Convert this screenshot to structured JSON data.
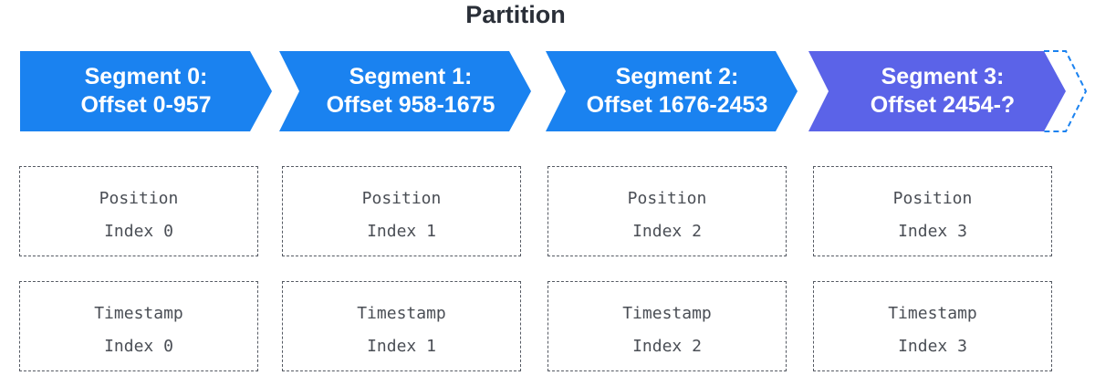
{
  "title": "Partition",
  "colors": {
    "segment_blue": "#1a82f0",
    "segment_active": "#5b63e8",
    "dashed_border": "#555a63",
    "text_dark": "#2a2f38",
    "mono_text": "#4a4e55"
  },
  "segments": [
    {
      "line1": "Segment 0:",
      "line2": "Offset 0-957",
      "active": false
    },
    {
      "line1": "Segment 1:",
      "line2": "Offset 958-1675",
      "active": false
    },
    {
      "line1": "Segment 2:",
      "line2": "Offset 1676-2453",
      "active": false
    },
    {
      "line1": "Segment 3:",
      "line2": "Offset 2454-?",
      "active": true
    }
  ],
  "position_indexes": [
    {
      "label": "Position",
      "value": "Index 0"
    },
    {
      "label": "Position",
      "value": "Index 1"
    },
    {
      "label": "Position",
      "value": "Index 2"
    },
    {
      "label": "Position",
      "value": "Index 3"
    }
  ],
  "timestamp_indexes": [
    {
      "label": "Timestamp",
      "value": "Index 0"
    },
    {
      "label": "Timestamp",
      "value": "Index 1"
    },
    {
      "label": "Timestamp",
      "value": "Index 2"
    },
    {
      "label": "Timestamp",
      "value": "Index 3"
    }
  ]
}
